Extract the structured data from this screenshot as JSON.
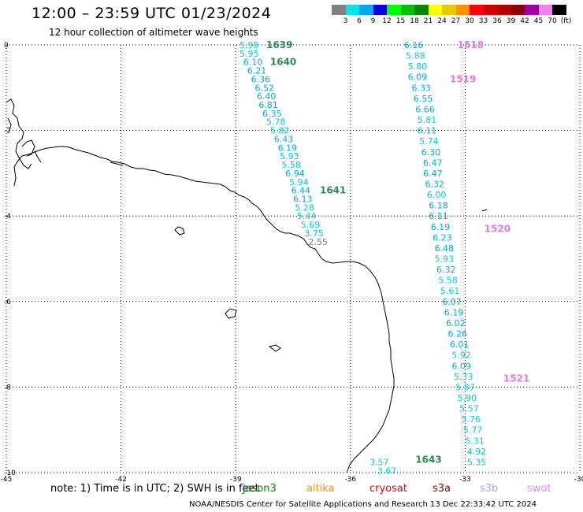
{
  "title": "12:00 – 23:59 UTC 01/23/2024",
  "subtitle": "12 hour collection of altimeter wave heights",
  "colorbar": {
    "colors": [
      "#808080",
      "#00e5e5",
      "#00a8f0",
      "#0000e0",
      "#00ff00",
      "#00c000",
      "#008800",
      "#ffff00",
      "#e8c800",
      "#ff9000",
      "#ff0000",
      "#d00000",
      "#b00000",
      "#8c0000",
      "#a000a0",
      "#f080f0",
      "#000000"
    ],
    "labels": [
      "3",
      "6",
      "9",
      "12",
      "15",
      "18",
      "21",
      "24",
      "27",
      "30",
      "33",
      "36",
      "39",
      "42",
      "45",
      "70",
      "(ft)"
    ]
  },
  "axes": {
    "x_ticks": [
      "-45",
      "-42",
      "-39",
      "-36",
      "-33",
      "-30"
    ],
    "y_ticks": [
      "0",
      "-2",
      "-4",
      "-6",
      "-8",
      "-10"
    ]
  },
  "map_data": {
    "lon_range": [
      -45,
      -30
    ],
    "lat_range": [
      -10,
      0
    ],
    "tracks": [
      {
        "name": "1639",
        "color": "#2e8b57",
        "label_point": {
          "lon": -38.2,
          "lat": 0
        }
      },
      {
        "name": "1640",
        "color": "#2e8b57",
        "label_point": {
          "lon": -38.1,
          "lat": -0.4
        }
      },
      {
        "name": "1641",
        "color": "#2e8b57",
        "label_point": {
          "lon": -36.8,
          "lat": -3.4
        }
      },
      {
        "name": "1643",
        "color": "#2e8b57",
        "label_point": {
          "lon": -34.3,
          "lat": -9.7
        }
      },
      {
        "name": "1518",
        "color": "#e878d8",
        "label_point": {
          "lon": -33.2,
          "lat": 0
        }
      },
      {
        "name": "1519",
        "color": "#e878d8",
        "label_point": {
          "lon": -33.4,
          "lat": -0.8
        }
      },
      {
        "name": "1520",
        "color": "#e878d8",
        "label_point": {
          "lon": -32.5,
          "lat": -4.3
        }
      },
      {
        "name": "1521",
        "color": "#e878d8",
        "label_point": {
          "lon": -32.0,
          "lat": -7.8
        }
      }
    ],
    "wave_heights": [
      {
        "v": "5.98",
        "lon": -38.9,
        "lat": 0.0,
        "c": "#00cccc"
      },
      {
        "v": "5.95",
        "lon": -38.9,
        "lat": -0.2,
        "c": "#00cccc"
      },
      {
        "v": "6.10",
        "lon": -38.8,
        "lat": -0.4,
        "c": "#00a8e0"
      },
      {
        "v": "6.21",
        "lon": -38.7,
        "lat": -0.6,
        "c": "#00a8e0"
      },
      {
        "v": "6.36",
        "lon": -38.6,
        "lat": -0.8,
        "c": "#00a8e0"
      },
      {
        "v": "6.52",
        "lon": -38.5,
        "lat": -1.0,
        "c": "#00a8e0"
      },
      {
        "v": "6.40",
        "lon": -38.45,
        "lat": -1.2,
        "c": "#00a8e0"
      },
      {
        "v": "6.81",
        "lon": -38.4,
        "lat": -1.4,
        "c": "#00a8e0"
      },
      {
        "v": "6.35",
        "lon": -38.3,
        "lat": -1.6,
        "c": "#00a8e0"
      },
      {
        "v": "5.78",
        "lon": -38.2,
        "lat": -1.8,
        "c": "#00cccc"
      },
      {
        "v": "5.82",
        "lon": -38.1,
        "lat": -2.0,
        "c": "#00cccc"
      },
      {
        "v": "6.43",
        "lon": -38.0,
        "lat": -2.2,
        "c": "#00a8e0"
      },
      {
        "v": "6.19",
        "lon": -37.9,
        "lat": -2.4,
        "c": "#00a8e0"
      },
      {
        "v": "5.93",
        "lon": -37.85,
        "lat": -2.6,
        "c": "#00cccc"
      },
      {
        "v": "5.58",
        "lon": -37.8,
        "lat": -2.8,
        "c": "#00cccc"
      },
      {
        "v": "6.94",
        "lon": -37.7,
        "lat": -3.0,
        "c": "#00a8e0"
      },
      {
        "v": "5.94",
        "lon": -37.6,
        "lat": -3.2,
        "c": "#00cccc"
      },
      {
        "v": "6.44",
        "lon": -37.55,
        "lat": -3.4,
        "c": "#00a8e0"
      },
      {
        "v": "6.13",
        "lon": -37.5,
        "lat": -3.6,
        "c": "#00a8e0"
      },
      {
        "v": "5.28",
        "lon": -37.45,
        "lat": -3.8,
        "c": "#00cccc"
      },
      {
        "v": "5.44",
        "lon": -37.4,
        "lat": -4.0,
        "c": "#00cccc"
      },
      {
        "v": "5.69",
        "lon": -37.3,
        "lat": -4.2,
        "c": "#00cccc"
      },
      {
        "v": "3.75",
        "lon": -37.2,
        "lat": -4.4,
        "c": "#00cccc"
      },
      {
        "v": "2.55",
        "lon": -37.1,
        "lat": -4.6,
        "c": "#808080"
      },
      {
        "v": "6.16",
        "lon": -34.6,
        "lat": 0.0,
        "c": "#00a8e0"
      },
      {
        "v": "5.88",
        "lon": -34.55,
        "lat": -0.25,
        "c": "#00cccc"
      },
      {
        "v": "5.80",
        "lon": -34.5,
        "lat": -0.5,
        "c": "#00cccc"
      },
      {
        "v": "6.09",
        "lon": -34.5,
        "lat": -0.75,
        "c": "#00a8e0"
      },
      {
        "v": "6.33",
        "lon": -34.4,
        "lat": -1.0,
        "c": "#00a8e0"
      },
      {
        "v": "6.55",
        "lon": -34.35,
        "lat": -1.25,
        "c": "#00a8e0"
      },
      {
        "v": "6.66",
        "lon": -34.3,
        "lat": -1.5,
        "c": "#00a8e0"
      },
      {
        "v": "5.81",
        "lon": -34.25,
        "lat": -1.75,
        "c": "#00cccc"
      },
      {
        "v": "6.11",
        "lon": -34.25,
        "lat": -2.0,
        "c": "#00a8e0"
      },
      {
        "v": "5.74",
        "lon": -34.2,
        "lat": -2.25,
        "c": "#00cccc"
      },
      {
        "v": "6.30",
        "lon": -34.15,
        "lat": -2.5,
        "c": "#00a8e0"
      },
      {
        "v": "6.47",
        "lon": -34.1,
        "lat": -2.75,
        "c": "#00a8e0"
      },
      {
        "v": "6.47",
        "lon": -34.1,
        "lat": -3.0,
        "c": "#00a8e0"
      },
      {
        "v": "6.32",
        "lon": -34.05,
        "lat": -3.25,
        "c": "#00a8e0"
      },
      {
        "v": "6.00",
        "lon": -34.0,
        "lat": -3.5,
        "c": "#00cccc"
      },
      {
        "v": "6.18",
        "lon": -33.95,
        "lat": -3.75,
        "c": "#00a8e0"
      },
      {
        "v": "6.11",
        "lon": -33.95,
        "lat": -4.0,
        "c": "#00a8e0"
      },
      {
        "v": "6.19",
        "lon": -33.9,
        "lat": -4.25,
        "c": "#00a8e0"
      },
      {
        "v": "6.23",
        "lon": -33.85,
        "lat": -4.5,
        "c": "#00a8e0"
      },
      {
        "v": "6.48",
        "lon": -33.8,
        "lat": -4.75,
        "c": "#00a8e0"
      },
      {
        "v": "5.93",
        "lon": -33.8,
        "lat": -5.0,
        "c": "#00cccc"
      },
      {
        "v": "6.32",
        "lon": -33.75,
        "lat": -5.25,
        "c": "#00a8e0"
      },
      {
        "v": "5.58",
        "lon": -33.7,
        "lat": -5.5,
        "c": "#00cccc"
      },
      {
        "v": "5.61",
        "lon": -33.65,
        "lat": -5.75,
        "c": "#00cccc"
      },
      {
        "v": "6.07",
        "lon": -33.6,
        "lat": -6.0,
        "c": "#00a8e0"
      },
      {
        "v": "6.19",
        "lon": -33.55,
        "lat": -6.25,
        "c": "#00a8e0"
      },
      {
        "v": "6.02",
        "lon": -33.5,
        "lat": -6.5,
        "c": "#00a8e0"
      },
      {
        "v": "6.26",
        "lon": -33.45,
        "lat": -6.75,
        "c": "#00a8e0"
      },
      {
        "v": "6.01",
        "lon": -33.4,
        "lat": -7.0,
        "c": "#00a8e0"
      },
      {
        "v": "5.92",
        "lon": -33.35,
        "lat": -7.25,
        "c": "#00cccc"
      },
      {
        "v": "6.09",
        "lon": -33.35,
        "lat": -7.5,
        "c": "#00a8e0"
      },
      {
        "v": "5.33",
        "lon": -33.3,
        "lat": -7.75,
        "c": "#00cccc"
      },
      {
        "v": "5.87",
        "lon": -33.25,
        "lat": -8.0,
        "c": "#00cccc"
      },
      {
        "v": "5.90",
        "lon": -33.2,
        "lat": -8.25,
        "c": "#00cccc"
      },
      {
        "v": "5.57",
        "lon": -33.15,
        "lat": -8.5,
        "c": "#00cccc"
      },
      {
        "v": "5.76",
        "lon": -33.1,
        "lat": -8.75,
        "c": "#00cccc"
      },
      {
        "v": "5.77",
        "lon": -33.05,
        "lat": -9.0,
        "c": "#00cccc"
      },
      {
        "v": "5.31",
        "lon": -33.0,
        "lat": -9.25,
        "c": "#00cccc"
      },
      {
        "v": "4.92",
        "lon": -32.95,
        "lat": -9.5,
        "c": "#00cccc"
      },
      {
        "v": "5.35",
        "lon": -32.95,
        "lat": -9.75,
        "c": "#00cccc"
      },
      {
        "v": "3.57",
        "lon": -35.5,
        "lat": -9.75,
        "c": "#00cccc"
      },
      {
        "v": "3.67",
        "lon": -35.3,
        "lat": -9.95,
        "c": "#00cccc"
      }
    ]
  },
  "footer": {
    "note": "note:  1) Time is in UTC; 2) SWH is in feet",
    "legend": [
      {
        "name": "jason3",
        "color": "#008800"
      },
      {
        "name": "altika",
        "color": "#ff9000"
      },
      {
        "name": "cryosat",
        "color": "#ee0000"
      },
      {
        "name": "s3a",
        "color": "#8c0000"
      },
      {
        "name": "s3b",
        "color": "#b8a0e8"
      },
      {
        "name": "swot",
        "color": "#f080f0"
      }
    ],
    "credit": "NOAA/NESDIS Center for Satellite Applications and Research    13 Dec 22:33:42 UTC 2024"
  }
}
